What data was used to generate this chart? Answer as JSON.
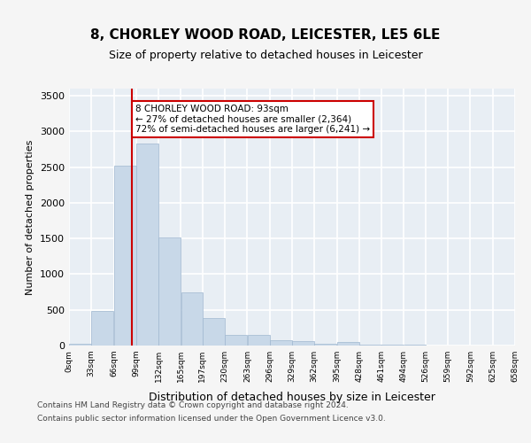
{
  "title": "8, CHORLEY WOOD ROAD, LEICESTER, LE5 6LE",
  "subtitle": "Size of property relative to detached houses in Leicester",
  "xlabel": "Distribution of detached houses by size in Leicester",
  "ylabel": "Number of detached properties",
  "bar_color": "#c8d8e8",
  "bar_edge_color": "#a0b8d0",
  "background_color": "#e8eef4",
  "grid_color": "#ffffff",
  "bins": [
    0,
    33,
    66,
    99,
    132,
    165,
    197,
    230,
    263,
    296,
    329,
    362,
    395,
    428,
    461,
    494,
    526,
    559,
    592,
    625,
    658
  ],
  "bin_labels": [
    "0sqm",
    "33sqm",
    "66sqm",
    "99sqm",
    "132sqm",
    "165sqm",
    "197sqm",
    "230sqm",
    "263sqm",
    "296sqm",
    "329sqm",
    "362sqm",
    "395sqm",
    "428sqm",
    "461sqm",
    "494sqm",
    "526sqm",
    "559sqm",
    "592sqm",
    "625sqm",
    "658sqm"
  ],
  "values": [
    20,
    480,
    2520,
    2830,
    1510,
    740,
    390,
    155,
    155,
    80,
    65,
    30,
    55,
    10,
    10,
    10,
    5,
    5,
    5,
    5
  ],
  "property_line_x": 93,
  "property_line_color": "#cc0000",
  "annotation_text": "8 CHORLEY WOOD ROAD: 93sqm\n← 27% of detached houses are smaller (2,364)\n72% of semi-detached houses are larger (6,241) →",
  "annotation_box_color": "#ffffff",
  "annotation_box_edge_color": "#cc0000",
  "ylim": [
    0,
    3600
  ],
  "yticks": [
    0,
    500,
    1000,
    1500,
    2000,
    2500,
    3000,
    3500
  ],
  "footer_line1": "Contains HM Land Registry data © Crown copyright and database right 2024.",
  "footer_line2": "Contains public sector information licensed under the Open Government Licence v3.0."
}
